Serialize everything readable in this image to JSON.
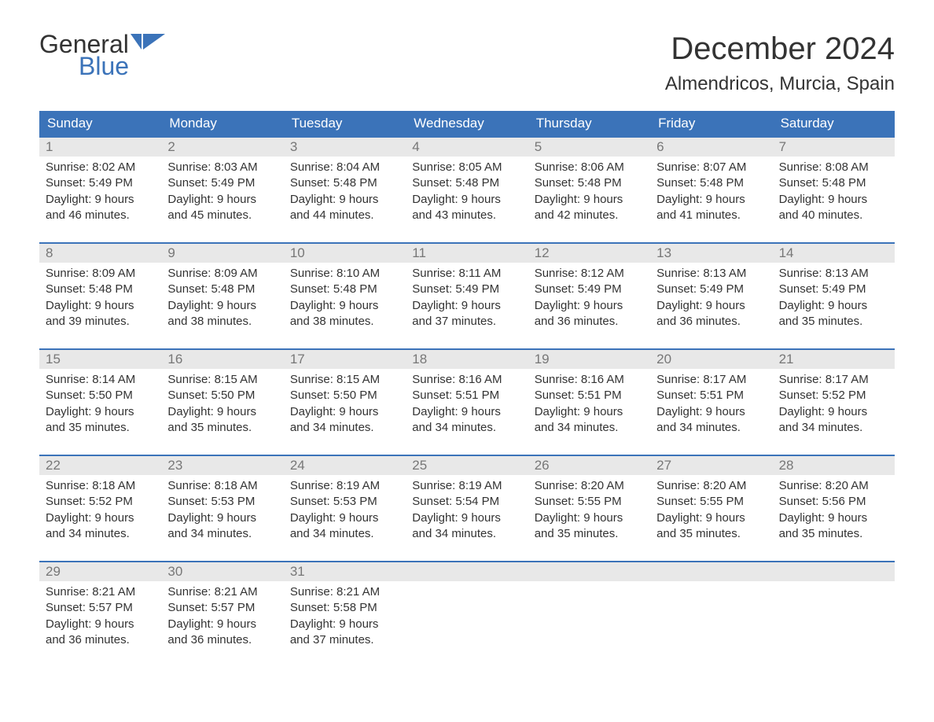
{
  "logo": {
    "text1": "General",
    "text2": "Blue"
  },
  "title": "December 2024",
  "location": "Almendricos, Murcia, Spain",
  "colors": {
    "header_bg": "#3b73b9",
    "header_text": "#ffffff",
    "daynum_bg": "#e8e8e8",
    "daynum_text": "#777777",
    "body_text": "#333333",
    "week_border": "#3b73b9",
    "page_bg": "#ffffff"
  },
  "fonts": {
    "title_size_pt": 30,
    "location_size_pt": 18,
    "dow_size_pt": 13,
    "body_size_pt": 11
  },
  "daysOfWeek": [
    "Sunday",
    "Monday",
    "Tuesday",
    "Wednesday",
    "Thursday",
    "Friday",
    "Saturday"
  ],
  "weeks": [
    [
      {
        "num": "1",
        "l1": "Sunrise: 8:02 AM",
        "l2": "Sunset: 5:49 PM",
        "l3": "Daylight: 9 hours",
        "l4": "and 46 minutes."
      },
      {
        "num": "2",
        "l1": "Sunrise: 8:03 AM",
        "l2": "Sunset: 5:49 PM",
        "l3": "Daylight: 9 hours",
        "l4": "and 45 minutes."
      },
      {
        "num": "3",
        "l1": "Sunrise: 8:04 AM",
        "l2": "Sunset: 5:48 PM",
        "l3": "Daylight: 9 hours",
        "l4": "and 44 minutes."
      },
      {
        "num": "4",
        "l1": "Sunrise: 8:05 AM",
        "l2": "Sunset: 5:48 PM",
        "l3": "Daylight: 9 hours",
        "l4": "and 43 minutes."
      },
      {
        "num": "5",
        "l1": "Sunrise: 8:06 AM",
        "l2": "Sunset: 5:48 PM",
        "l3": "Daylight: 9 hours",
        "l4": "and 42 minutes."
      },
      {
        "num": "6",
        "l1": "Sunrise: 8:07 AM",
        "l2": "Sunset: 5:48 PM",
        "l3": "Daylight: 9 hours",
        "l4": "and 41 minutes."
      },
      {
        "num": "7",
        "l1": "Sunrise: 8:08 AM",
        "l2": "Sunset: 5:48 PM",
        "l3": "Daylight: 9 hours",
        "l4": "and 40 minutes."
      }
    ],
    [
      {
        "num": "8",
        "l1": "Sunrise: 8:09 AM",
        "l2": "Sunset: 5:48 PM",
        "l3": "Daylight: 9 hours",
        "l4": "and 39 minutes."
      },
      {
        "num": "9",
        "l1": "Sunrise: 8:09 AM",
        "l2": "Sunset: 5:48 PM",
        "l3": "Daylight: 9 hours",
        "l4": "and 38 minutes."
      },
      {
        "num": "10",
        "l1": "Sunrise: 8:10 AM",
        "l2": "Sunset: 5:48 PM",
        "l3": "Daylight: 9 hours",
        "l4": "and 38 minutes."
      },
      {
        "num": "11",
        "l1": "Sunrise: 8:11 AM",
        "l2": "Sunset: 5:49 PM",
        "l3": "Daylight: 9 hours",
        "l4": "and 37 minutes."
      },
      {
        "num": "12",
        "l1": "Sunrise: 8:12 AM",
        "l2": "Sunset: 5:49 PM",
        "l3": "Daylight: 9 hours",
        "l4": "and 36 minutes."
      },
      {
        "num": "13",
        "l1": "Sunrise: 8:13 AM",
        "l2": "Sunset: 5:49 PM",
        "l3": "Daylight: 9 hours",
        "l4": "and 36 minutes."
      },
      {
        "num": "14",
        "l1": "Sunrise: 8:13 AM",
        "l2": "Sunset: 5:49 PM",
        "l3": "Daylight: 9 hours",
        "l4": "and 35 minutes."
      }
    ],
    [
      {
        "num": "15",
        "l1": "Sunrise: 8:14 AM",
        "l2": "Sunset: 5:50 PM",
        "l3": "Daylight: 9 hours",
        "l4": "and 35 minutes."
      },
      {
        "num": "16",
        "l1": "Sunrise: 8:15 AM",
        "l2": "Sunset: 5:50 PM",
        "l3": "Daylight: 9 hours",
        "l4": "and 35 minutes."
      },
      {
        "num": "17",
        "l1": "Sunrise: 8:15 AM",
        "l2": "Sunset: 5:50 PM",
        "l3": "Daylight: 9 hours",
        "l4": "and 34 minutes."
      },
      {
        "num": "18",
        "l1": "Sunrise: 8:16 AM",
        "l2": "Sunset: 5:51 PM",
        "l3": "Daylight: 9 hours",
        "l4": "and 34 minutes."
      },
      {
        "num": "19",
        "l1": "Sunrise: 8:16 AM",
        "l2": "Sunset: 5:51 PM",
        "l3": "Daylight: 9 hours",
        "l4": "and 34 minutes."
      },
      {
        "num": "20",
        "l1": "Sunrise: 8:17 AM",
        "l2": "Sunset: 5:51 PM",
        "l3": "Daylight: 9 hours",
        "l4": "and 34 minutes."
      },
      {
        "num": "21",
        "l1": "Sunrise: 8:17 AM",
        "l2": "Sunset: 5:52 PM",
        "l3": "Daylight: 9 hours",
        "l4": "and 34 minutes."
      }
    ],
    [
      {
        "num": "22",
        "l1": "Sunrise: 8:18 AM",
        "l2": "Sunset: 5:52 PM",
        "l3": "Daylight: 9 hours",
        "l4": "and 34 minutes."
      },
      {
        "num": "23",
        "l1": "Sunrise: 8:18 AM",
        "l2": "Sunset: 5:53 PM",
        "l3": "Daylight: 9 hours",
        "l4": "and 34 minutes."
      },
      {
        "num": "24",
        "l1": "Sunrise: 8:19 AM",
        "l2": "Sunset: 5:53 PM",
        "l3": "Daylight: 9 hours",
        "l4": "and 34 minutes."
      },
      {
        "num": "25",
        "l1": "Sunrise: 8:19 AM",
        "l2": "Sunset: 5:54 PM",
        "l3": "Daylight: 9 hours",
        "l4": "and 34 minutes."
      },
      {
        "num": "26",
        "l1": "Sunrise: 8:20 AM",
        "l2": "Sunset: 5:55 PM",
        "l3": "Daylight: 9 hours",
        "l4": "and 35 minutes."
      },
      {
        "num": "27",
        "l1": "Sunrise: 8:20 AM",
        "l2": "Sunset: 5:55 PM",
        "l3": "Daylight: 9 hours",
        "l4": "and 35 minutes."
      },
      {
        "num": "28",
        "l1": "Sunrise: 8:20 AM",
        "l2": "Sunset: 5:56 PM",
        "l3": "Daylight: 9 hours",
        "l4": "and 35 minutes."
      }
    ],
    [
      {
        "num": "29",
        "l1": "Sunrise: 8:21 AM",
        "l2": "Sunset: 5:57 PM",
        "l3": "Daylight: 9 hours",
        "l4": "and 36 minutes."
      },
      {
        "num": "30",
        "l1": "Sunrise: 8:21 AM",
        "l2": "Sunset: 5:57 PM",
        "l3": "Daylight: 9 hours",
        "l4": "and 36 minutes."
      },
      {
        "num": "31",
        "l1": "Sunrise: 8:21 AM",
        "l2": "Sunset: 5:58 PM",
        "l3": "Daylight: 9 hours",
        "l4": "and 37 minutes."
      },
      null,
      null,
      null,
      null
    ]
  ]
}
